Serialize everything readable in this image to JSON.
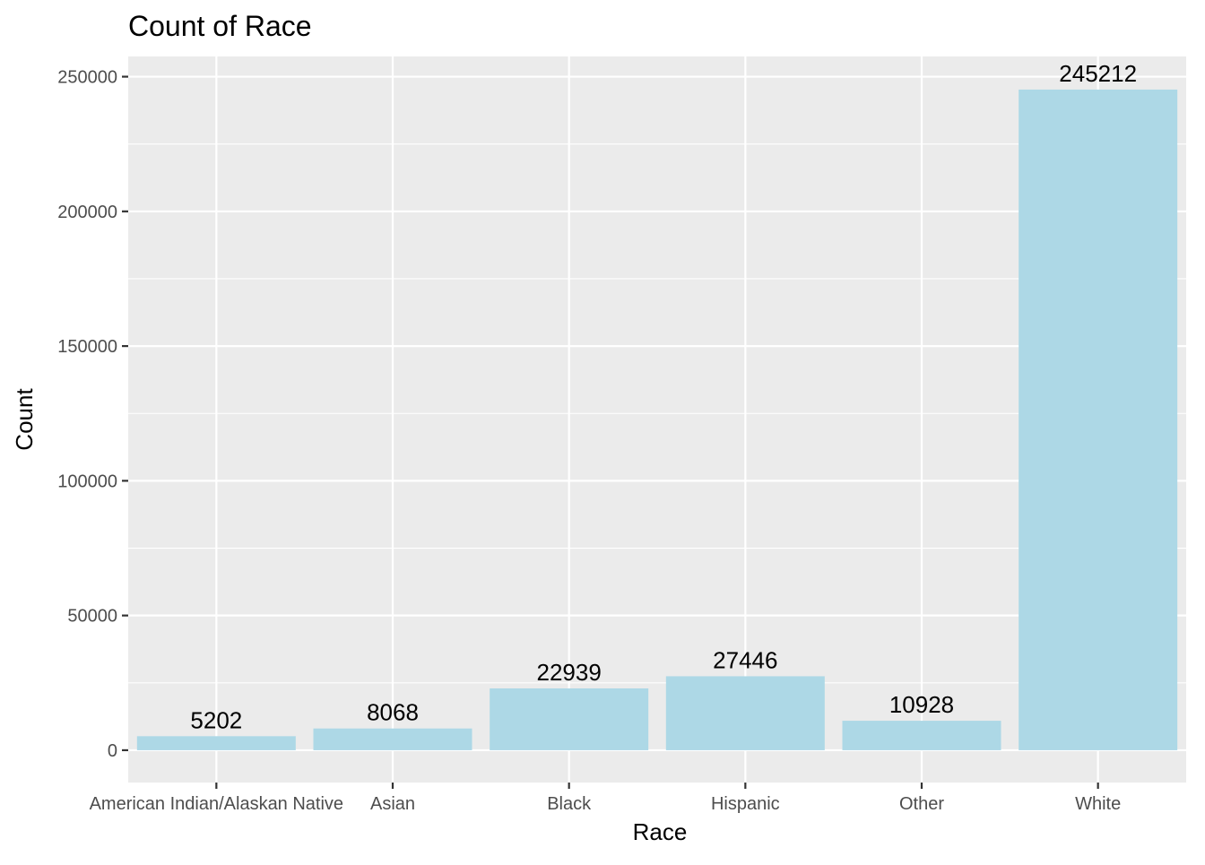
{
  "chart_data": {
    "type": "bar",
    "title": "Count of Race",
    "xlabel": "Race",
    "ylabel": "Count",
    "categories": [
      "American Indian/Alaskan Native",
      "Asian",
      "Black",
      "Hispanic",
      "Other",
      "White"
    ],
    "values": [
      5202,
      8068,
      22939,
      27446,
      10928,
      245212
    ],
    "data_labels": [
      "5202",
      "8068",
      "22939",
      "27446",
      "10928",
      "245212"
    ],
    "yticks": [
      0,
      50000,
      100000,
      150000,
      200000,
      250000
    ],
    "ytick_labels": [
      "0",
      "50000",
      "100000",
      "150000",
      "200000",
      "250000"
    ],
    "ylim": [
      -12000,
      257500
    ],
    "grid": true,
    "legend": "none",
    "colors": {
      "bar": "#ADD8E6",
      "panel": "#EBEBEB",
      "grid": "#FFFFFF",
      "tick_text": "#4D4D4D",
      "text": "#000000"
    }
  }
}
